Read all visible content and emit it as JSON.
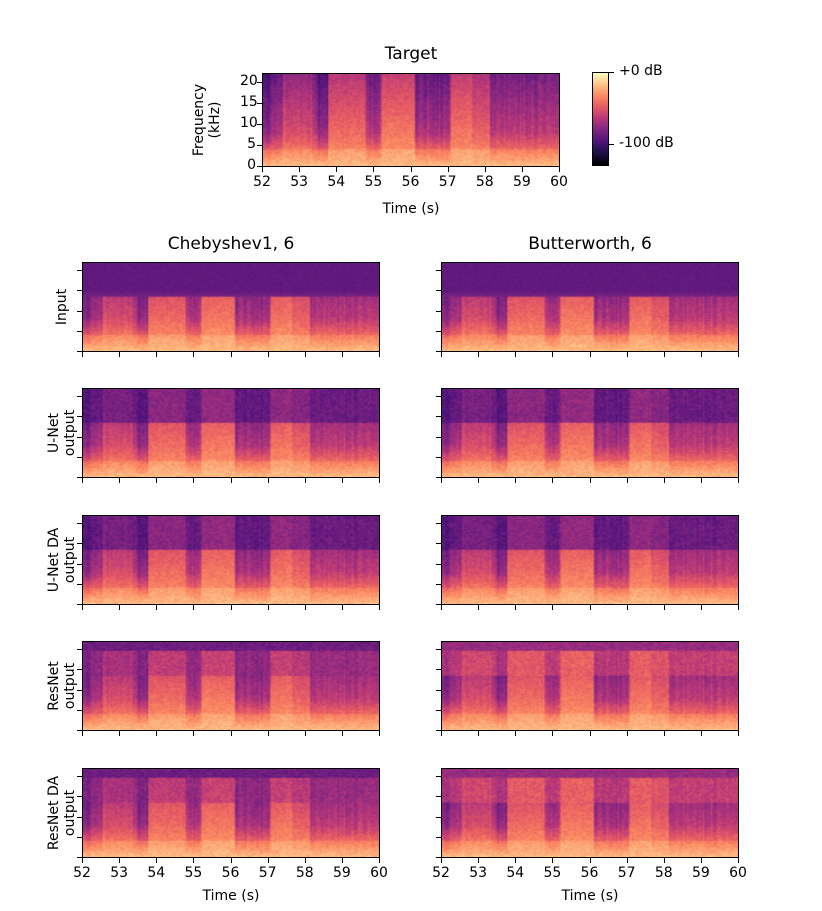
{
  "chart_data": {
    "type": "heatmap",
    "colormap": "magma",
    "target": {
      "title": "Target",
      "xlabel": "Time (s)",
      "ylabel": "Frequency\n(kHz)",
      "xlim": [
        52,
        60
      ],
      "ylim": [
        0,
        22.05
      ],
      "xticks": [
        "52",
        "53",
        "54",
        "55",
        "56",
        "57",
        "58",
        "59",
        "60"
      ],
      "yticks": [
        "0",
        "5",
        "10",
        "15",
        "20"
      ]
    },
    "colorbar": {
      "range_db": [
        -130,
        0
      ],
      "ticks": [
        {
          "value": 0,
          "label": "+0 dB"
        },
        {
          "value": -100,
          "label": "-100 dB"
        }
      ]
    },
    "columns": [
      {
        "title": "Chebyshev1, 6"
      },
      {
        "title": "Butterworth, 6"
      }
    ],
    "rows": [
      {
        "label": "Input",
        "cutoff_khz": 13.5
      },
      {
        "label": "U-Net\noutput",
        "cutoff_khz": 13.8
      },
      {
        "label": "U-Net DA\noutput",
        "cutoff_khz": 13.8
      },
      {
        "label": "ResNet\noutput",
        "cutoff_khz": 13.8
      },
      {
        "label": "ResNet DA\noutput",
        "cutoff_khz": 13.8
      }
    ],
    "grid_xlabel": "Time (s)",
    "grid_xticks": [
      "52",
      "53",
      "54",
      "55",
      "56",
      "57",
      "58",
      "59",
      "60"
    ]
  }
}
